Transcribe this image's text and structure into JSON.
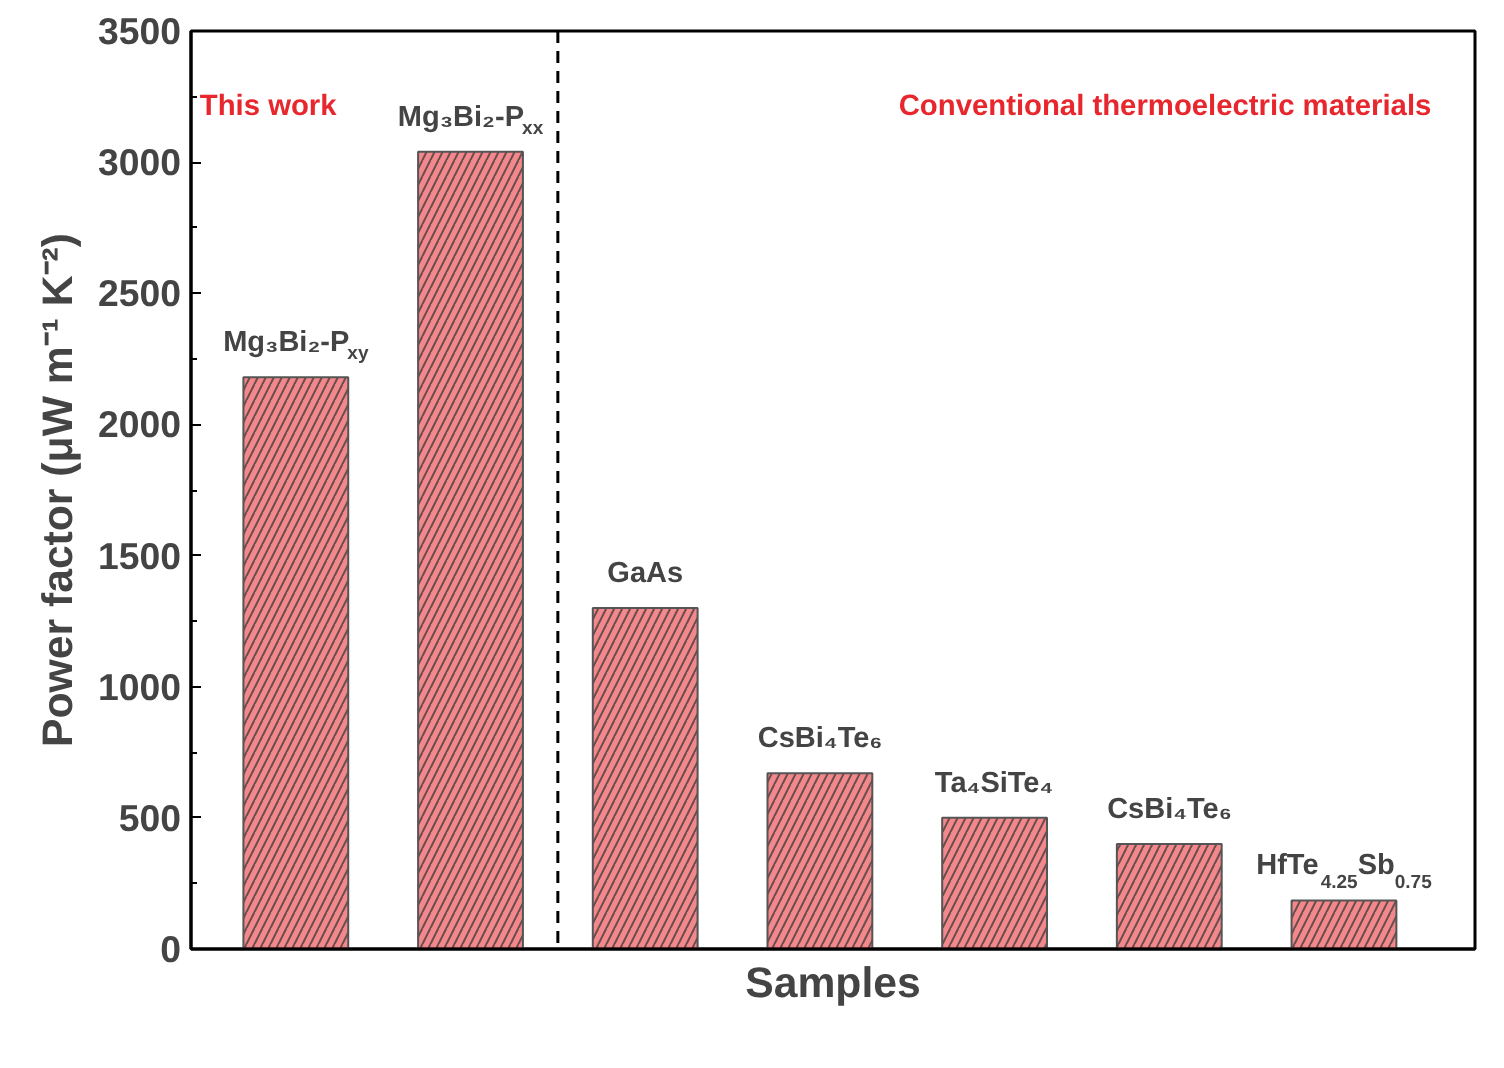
{
  "chart_data": {
    "type": "bar",
    "xlabel": "Samples",
    "ylabel": "Power factor (μW m⁻¹ K⁻²)",
    "categories": [
      "Mg₃Bi₂-P$_{xy}$",
      "Mg₃Bi₂-P$_{xx}$",
      "GaAs",
      "CsBi₄Te₆",
      "Ta₄SiTe₄",
      "CsBi₄Te₆",
      "HfTe$_{4.25}$Sb$_{0.75}$"
    ],
    "values": [
      2180,
      3040,
      1300,
      670,
      500,
      400,
      185
    ],
    "color": "#e8262d",
    "ylim": [
      0,
      3500
    ],
    "yticks": [
      0,
      500,
      1000,
      1500,
      2000,
      2500,
      3000,
      3500
    ],
    "grid": false,
    "tick_labels": "y",
    "annotations": [
      "This work",
      "Conventional thermoelectric materials"
    ]
  }
}
